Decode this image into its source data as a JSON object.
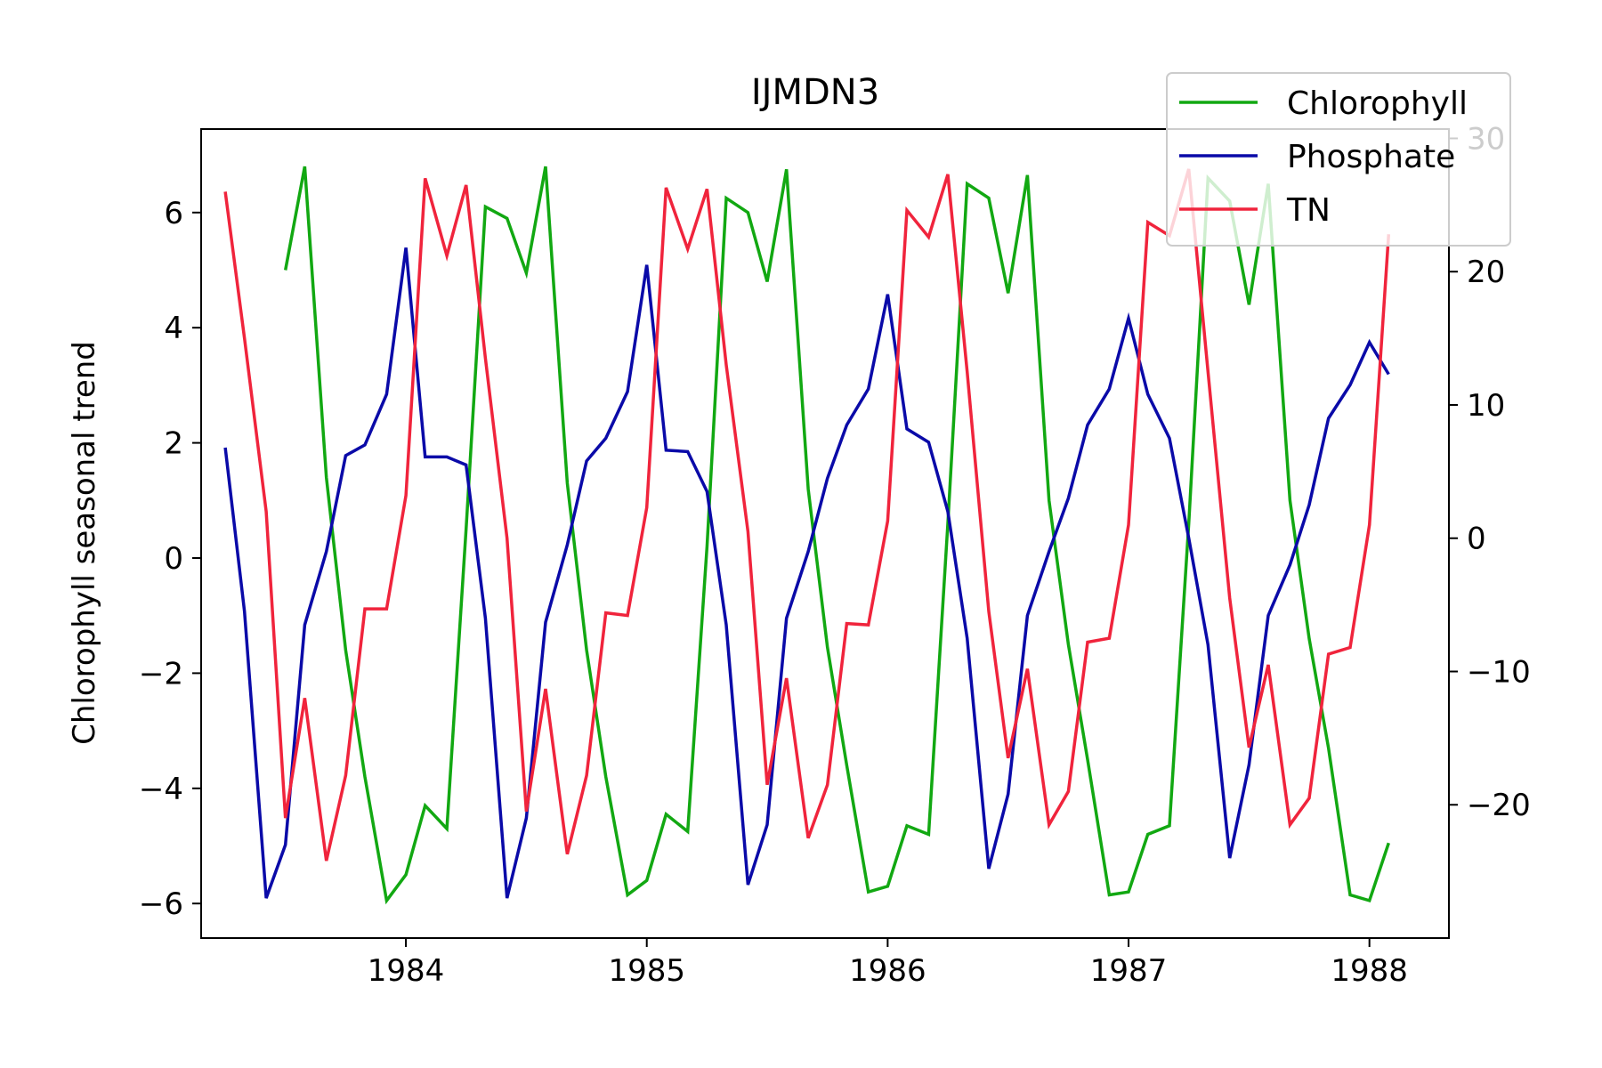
{
  "chart_data": {
    "type": "line",
    "title": "IJMDN3",
    "ylabel": "Chlorophyll seasonal trend",
    "ylabel_right": "",
    "xlim": [
      1983.15,
      1988.33
    ],
    "ylim": [
      -6.6,
      7.45
    ],
    "y2lim": [
      -30,
      30.7
    ],
    "x_ticks": [
      1984,
      1985,
      1986,
      1987,
      1988
    ],
    "x_tick_labels": [
      "1984",
      "1985",
      "1986",
      "1987",
      "1988"
    ],
    "y_ticks": [
      -6,
      -4,
      -2,
      0,
      2,
      4,
      6
    ],
    "y_tick_labels": [
      "−6",
      "−4",
      "−2",
      "0",
      "2",
      "4",
      "6"
    ],
    "y2_ticks": [
      -20,
      -10,
      0,
      10,
      20,
      30
    ],
    "y2_tick_labels": [
      "−20",
      "−10",
      "0",
      "10",
      "20",
      "30"
    ],
    "grid": false,
    "legend_position": "top-right",
    "series": [
      {
        "name": "Chlorophyll",
        "axis": "left",
        "color": "#12a812",
        "x": [
          1983.5,
          1983.58,
          1983.67,
          1983.75,
          1983.83,
          1983.92,
          1984.0,
          1984.08,
          1984.17,
          1984.25,
          1984.33,
          1984.42,
          1984.5,
          1984.58,
          1984.67,
          1984.75,
          1984.83,
          1984.92,
          1985.0,
          1985.08,
          1985.17,
          1985.25,
          1985.33,
          1985.42,
          1985.5,
          1985.58,
          1985.67,
          1985.75,
          1985.83,
          1985.92,
          1986.0,
          1986.08,
          1986.17,
          1986.25,
          1986.33,
          1986.42,
          1986.5,
          1986.58,
          1986.67,
          1986.75,
          1986.83,
          1986.92,
          1987.0,
          1987.08,
          1987.17,
          1987.25,
          1987.33,
          1987.42,
          1987.5,
          1987.58,
          1987.67,
          1987.75,
          1987.83,
          1987.92,
          1988.0,
          1988.08
        ],
        "values": [
          5.0,
          6.8,
          1.4,
          -1.6,
          -3.8,
          -5.95,
          -5.5,
          -4.3,
          -4.7,
          0.5,
          6.1,
          5.9,
          4.95,
          6.8,
          1.3,
          -1.6,
          -3.8,
          -5.85,
          -5.6,
          -4.45,
          -4.75,
          0.2,
          6.25,
          6.0,
          4.8,
          6.75,
          1.2,
          -1.55,
          -3.6,
          -5.8,
          -5.7,
          -4.65,
          -4.8,
          0.6,
          6.5,
          6.25,
          4.6,
          6.65,
          1.0,
          -1.5,
          -3.5,
          -5.85,
          -5.8,
          -4.8,
          -4.65,
          0.6,
          6.6,
          6.2,
          4.4,
          6.5,
          1.0,
          -1.4,
          -3.3,
          -5.85,
          -5.95,
          -4.95
        ]
      },
      {
        "name": "Phosphate",
        "axis": "right",
        "color": "#0a0aa8",
        "x": [
          1983.25,
          1983.33,
          1983.42,
          1983.5,
          1983.58,
          1983.67,
          1983.75,
          1983.83,
          1983.92,
          1984.0,
          1984.08,
          1984.17,
          1984.25,
          1984.33,
          1984.42,
          1984.5,
          1984.58,
          1984.67,
          1984.75,
          1984.83,
          1984.92,
          1985.0,
          1985.08,
          1985.17,
          1985.25,
          1985.33,
          1985.42,
          1985.5,
          1985.58,
          1985.67,
          1985.75,
          1985.83,
          1985.92,
          1986.0,
          1986.08,
          1986.17,
          1986.25,
          1986.33,
          1986.42,
          1986.5,
          1986.58,
          1986.67,
          1986.75,
          1986.83,
          1986.92,
          1987.0,
          1987.08,
          1987.17,
          1987.25,
          1987.33,
          1987.42,
          1987.5,
          1987.58,
          1987.67,
          1987.75,
          1987.83,
          1987.92,
          1988.0,
          1988.08
        ],
        "values": [
          6.8,
          -5.5,
          -27.0,
          -23.0,
          -6.5,
          -1.0,
          6.2,
          7.0,
          10.8,
          21.8,
          6.1,
          6.1,
          5.5,
          -6.0,
          -27.0,
          -21.0,
          -6.3,
          -0.5,
          5.8,
          7.5,
          11.0,
          20.5,
          6.6,
          6.5,
          3.5,
          -6.5,
          -26.0,
          -21.5,
          -6.0,
          -1.0,
          4.5,
          8.5,
          11.2,
          18.3,
          8.2,
          7.2,
          2.0,
          -7.5,
          -24.8,
          -19.2,
          -5.8,
          -1.0,
          3.0,
          8.5,
          11.2,
          16.5,
          10.8,
          7.5,
          0.0,
          -8.0,
          -24.0,
          -17.0,
          -5.8,
          -2.0,
          2.5,
          9.0,
          11.5,
          14.7,
          12.3
        ]
      },
      {
        "name": "TN",
        "axis": "right",
        "color": "#f0243c",
        "x": [
          1983.25,
          1983.33,
          1983.42,
          1983.5,
          1983.58,
          1983.67,
          1983.75,
          1983.83,
          1983.92,
          1984.0,
          1984.08,
          1984.17,
          1984.25,
          1984.33,
          1984.42,
          1984.5,
          1984.58,
          1984.67,
          1984.75,
          1984.83,
          1984.92,
          1985.0,
          1985.08,
          1985.17,
          1985.25,
          1985.33,
          1985.42,
          1985.5,
          1985.58,
          1985.67,
          1985.75,
          1985.83,
          1985.92,
          1986.0,
          1986.08,
          1986.17,
          1986.25,
          1986.33,
          1986.42,
          1986.5,
          1986.58,
          1986.67,
          1986.75,
          1986.83,
          1986.92,
          1987.0,
          1987.08,
          1987.17,
          1987.25,
          1987.33,
          1987.42,
          1987.5,
          1987.58,
          1987.67,
          1987.75,
          1987.83,
          1987.92,
          1988.0,
          1988.08
        ],
        "values": [
          26.0,
          15.0,
          2.0,
          -21.0,
          -12.0,
          -24.2,
          -17.8,
          -5.3,
          -5.3,
          3.2,
          27.0,
          21.2,
          26.5,
          13.5,
          0.0,
          -20.5,
          -11.3,
          -23.7,
          -17.8,
          -5.6,
          -5.8,
          2.3,
          26.3,
          21.7,
          26.2,
          13.0,
          0.5,
          -18.5,
          -10.5,
          -22.5,
          -18.5,
          -6.4,
          -6.5,
          1.3,
          24.6,
          22.6,
          27.3,
          12.5,
          -5.5,
          -16.5,
          -9.8,
          -21.5,
          -19.0,
          -7.8,
          -7.5,
          1.0,
          23.7,
          22.7,
          27.7,
          12.5,
          -4.5,
          -15.7,
          -9.5,
          -21.5,
          -19.5,
          -8.7,
          -8.2,
          1.0,
          22.8
        ]
      }
    ]
  }
}
